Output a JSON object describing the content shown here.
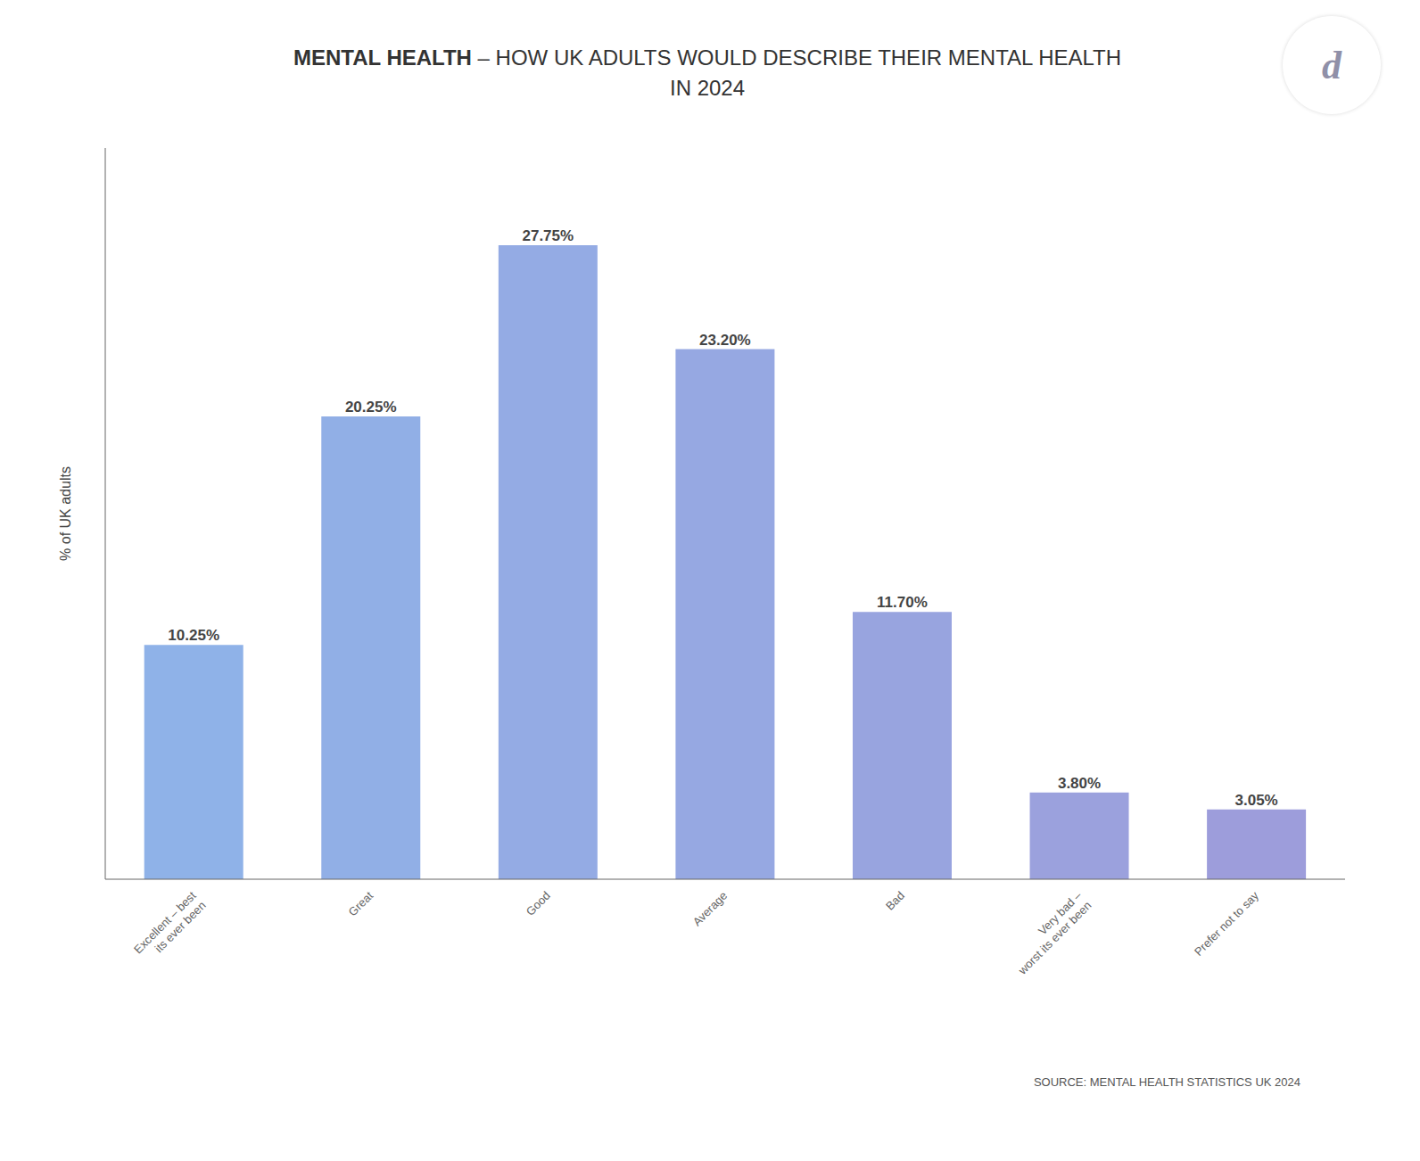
{
  "chart_data": {
    "type": "bar",
    "title": "MENTAL HEALTH – HOW UK ADULTS WOULD DESCRIBE THEIR MENTAL HEALTH",
    "subtitle": "IN 2024",
    "y_label": "% of UK adults",
    "source": "SOURCE: MENTAL HEALTH STATISTICS UK 2024",
    "annotations": [
      "d"
    ],
    "categories": [
      "Excellent – best\nits ever been",
      "Great",
      "Good",
      "Average",
      "Bad",
      "Very bad –\nworst its ever been",
      "Prefer not to say"
    ],
    "values": [
      10.25,
      20.25,
      27.75,
      23.2,
      11.7,
      3.8,
      3.05
    ],
    "value_labels": [
      "10.25%",
      "20.25%",
      "27.75%",
      "23.20%",
      "11.70%",
      "3.80%",
      "3.05%"
    ],
    "data_labels": true,
    "colors": [
      "#8fb2e8",
      "#91afe6",
      "#94abe4",
      "#96a8e2",
      "#98a4df",
      "#9ba1dd",
      "#9d9ddb"
    ],
    "ylim": [
      0,
      32
    ],
    "yticks": [],
    "tick_labels": "x",
    "grid": false
  }
}
